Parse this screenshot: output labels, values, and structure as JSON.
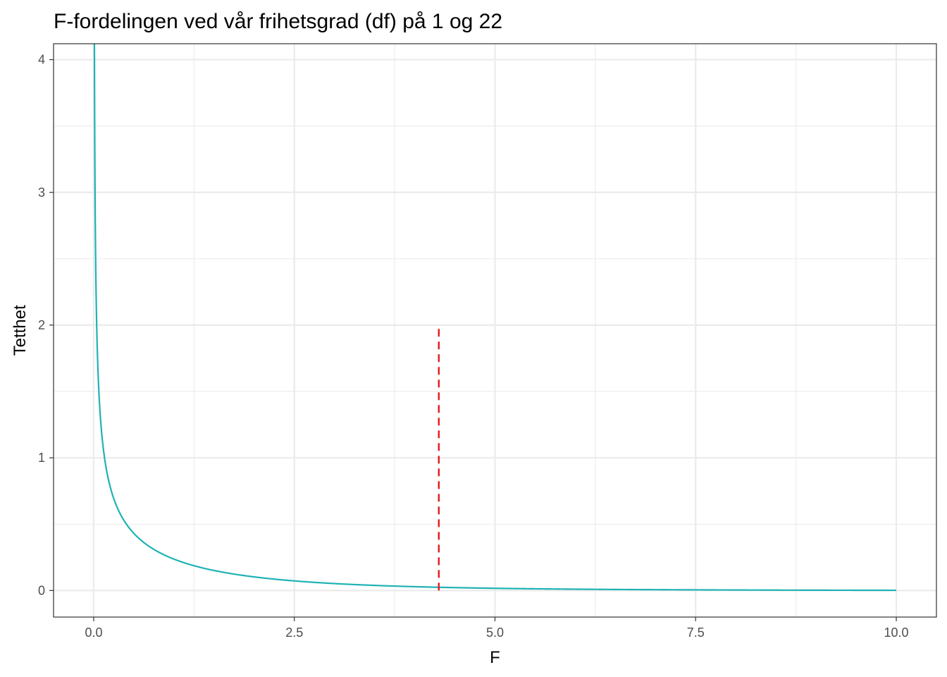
{
  "chart_data": {
    "type": "line",
    "title": "F-fordelingen ved vår frihetsgrad (df) på 1 og 22",
    "xlabel": "F",
    "ylabel": "Tetthet",
    "xlim": [
      -0.5,
      10.5
    ],
    "ylim": [
      -0.2,
      4.12
    ],
    "x_ticks": [
      0,
      2.5,
      5,
      7.5,
      10
    ],
    "x_tick_labels": [
      "0.0",
      "2.5",
      "5.0",
      "7.5",
      "10.0"
    ],
    "y_ticks": [
      0,
      1,
      2,
      3,
      4
    ],
    "y_tick_labels": [
      "0",
      "1",
      "2",
      "3",
      "4"
    ],
    "x_minor_ticks": [
      1.25,
      3.75,
      6.25,
      8.75
    ],
    "y_minor_ticks": [
      0.5,
      1.5,
      2.5,
      3.5
    ],
    "grid": true,
    "series": [
      {
        "distribution": "F",
        "df1": 1,
        "df2": 22,
        "x_range": [
          0,
          10
        ],
        "color": "#20b2b4"
      }
    ],
    "reference_line": {
      "x": 4.3,
      "y_range": [
        0,
        2
      ],
      "style": "dashed",
      "color": "#e41a1c"
    }
  }
}
